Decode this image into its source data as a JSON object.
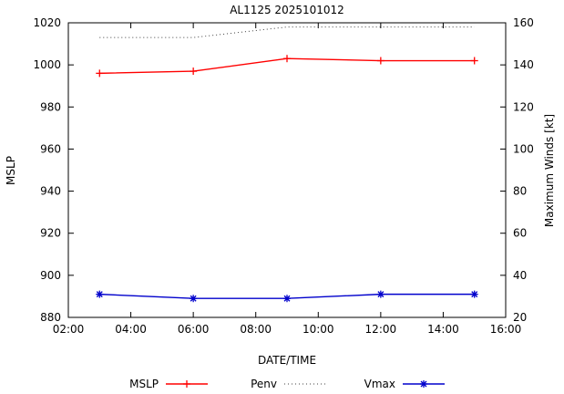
{
  "chart_data": {
    "type": "line",
    "title": "AL1125 2025101012",
    "background": "#ffffff",
    "axis_color": "#000000",
    "grid": false,
    "legend_position": "bottom-center",
    "x": [
      3,
      6,
      9,
      12,
      15
    ],
    "x_point_labels": [
      "03:00",
      "06:00",
      "09:00",
      "12:00",
      "15:00"
    ],
    "x_axis": {
      "label": "DATE/TIME",
      "min": 2,
      "max": 16,
      "tick_hours": [
        2,
        4,
        6,
        8,
        10,
        12,
        14,
        16
      ],
      "tick_labels": [
        "02:00",
        "04:00",
        "06:00",
        "08:00",
        "10:00",
        "12:00",
        "14:00",
        "16:00"
      ]
    },
    "left_axis": {
      "label": "MSLP",
      "min": 880,
      "max": 1020,
      "ticks": [
        880,
        900,
        920,
        940,
        960,
        980,
        1000,
        1020
      ]
    },
    "right_axis": {
      "label": "Maximum Winds [kt]",
      "min": 20,
      "max": 160,
      "ticks": [
        20,
        40,
        60,
        80,
        100,
        120,
        140,
        160
      ]
    },
    "series": [
      {
        "name": "MSLP",
        "axis": "left",
        "color": "#ff0000",
        "style": "solid",
        "marker": "plus",
        "values": [
          996,
          997,
          1003,
          1002,
          1002
        ]
      },
      {
        "name": "Penv",
        "axis": "left",
        "color": "#404040",
        "style": "dotted",
        "marker": "none",
        "values": [
          1013,
          1013,
          1018,
          1018,
          1018
        ]
      },
      {
        "name": "Vmax",
        "axis": "right",
        "color": "#0000cc",
        "style": "solid",
        "marker": "asterisk",
        "values": [
          31,
          29,
          29,
          31,
          31
        ]
      }
    ]
  }
}
